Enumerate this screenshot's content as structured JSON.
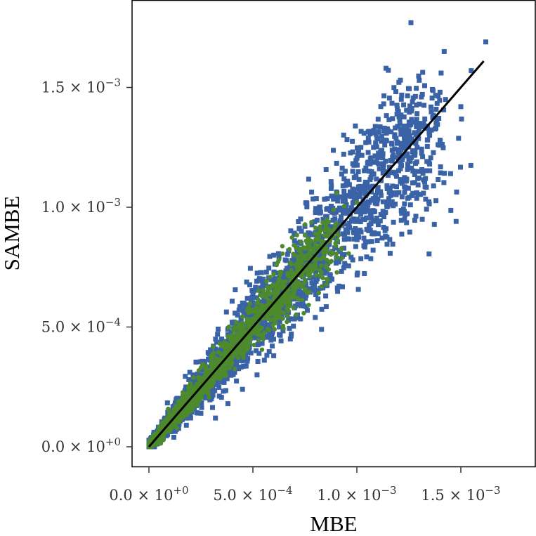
{
  "chart_data": {
    "type": "scatter",
    "xlabel": "MBE",
    "ylabel": "SAMBE",
    "xlim": [
      -8e-05,
      0.00183
    ],
    "ylim": [
      -8e-05,
      0.00187
    ],
    "x_ticks": [
      {
        "value": 0.0,
        "mantissa": "0.0",
        "exponent": "+0"
      },
      {
        "value": 0.0005,
        "mantissa": "5.0",
        "exponent": "−4"
      },
      {
        "value": 0.001,
        "mantissa": "1.0",
        "exponent": "−3"
      },
      {
        "value": 0.0015,
        "mantissa": "1.5",
        "exponent": "−3"
      }
    ],
    "y_ticks": [
      {
        "value": 0.0,
        "mantissa": "0.0",
        "exponent": "+0"
      },
      {
        "value": 0.0005,
        "mantissa": "5.0",
        "exponent": "−4"
      },
      {
        "value": 0.001,
        "mantissa": "1.0",
        "exponent": "−3"
      },
      {
        "value": 0.0015,
        "mantissa": "1.5",
        "exponent": "−3"
      }
    ],
    "grid": false,
    "series": [
      {
        "marker": "square",
        "color": "#3a62a6",
        "points": [
          [
            0.00126,
            0.00177
          ],
          [
            0.00162,
            0.00169
          ],
          [
            0.00142,
            0.00165
          ],
          [
            0.00155,
            0.00157
          ],
          [
            0.0013,
            0.00153
          ],
          [
            0.0014,
            0.00148
          ],
          [
            0.00131,
            0.00146
          ],
          [
            0.0015,
            0.00142
          ],
          [
            0.0012,
            0.0014
          ],
          [
            0.0013,
            0.00135
          ],
          [
            0.00138,
            0.00133
          ],
          [
            0.00115,
            0.00132
          ],
          [
            0.00125,
            0.00132
          ],
          [
            0.00135,
            0.0013
          ],
          [
            0.0014,
            0.00128
          ],
          [
            0.00108,
            0.00125
          ],
          [
            0.0012,
            0.00123
          ],
          [
            0.00125,
            0.0012
          ],
          [
            0.00135,
            0.00118
          ],
          [
            0.00128,
            0.00115
          ],
          [
            0.00098,
            0.00115
          ],
          [
            0.00133,
            0.00112
          ],
          [
            0.00095,
            0.0011
          ],
          [
            0.00105,
            0.0011
          ],
          [
            0.00118,
            0.00106
          ],
          [
            0.00105,
            0.001
          ],
          [
            0.00082,
            0.001
          ],
          [
            0.0009,
            0.00098
          ],
          [
            0.00113,
            0.00096
          ],
          [
            0.00075,
            0.00092
          ],
          [
            0.00095,
            0.0009
          ],
          [
            0.00085,
            0.00089
          ],
          [
            0.001,
            0.00088
          ],
          [
            0.0007,
            0.00086
          ],
          [
            0.00078,
            0.00084
          ],
          [
            0.00092,
            0.00082
          ],
          [
            0.0006,
            0.0008
          ],
          [
            0.00075,
            0.0008
          ],
          [
            0.00098,
            0.00078
          ],
          [
            0.00068,
            0.00076
          ],
          [
            0.00082,
            0.00074
          ],
          [
            0.00088,
            0.0007
          ],
          [
            0.00055,
            0.0007
          ],
          [
            0.00065,
            0.00068
          ],
          [
            0.00077,
            0.00066
          ],
          [
            0.0005,
            0.00064
          ],
          [
            0.00085,
            0.00063
          ],
          [
            0.0006,
            0.00062
          ],
          [
            0.0007,
            0.00058
          ],
          [
            0.00045,
            0.0006
          ],
          [
            0.0008,
            0.00054
          ],
          [
            0.00062,
            0.00052
          ],
          [
            0.0004,
            0.00052
          ],
          [
            0.00083,
            0.00049
          ],
          [
            0.00055,
            0.00047
          ],
          [
            0.00068,
            0.00045
          ],
          [
            0.00035,
            0.00045
          ],
          [
            0.00048,
            0.0004
          ],
          [
            0.0006,
            0.00038
          ],
          [
            0.0003,
            0.00038
          ],
          [
            0.0004,
            0.00033
          ],
          [
            0.00052,
            0.0003
          ],
          [
            0.00025,
            0.00032
          ],
          [
            0.00035,
            0.00027
          ],
          [
            0.00045,
            0.00024
          ],
          [
            0.0002,
            0.00025
          ],
          [
            0.0003,
            0.0002
          ],
          [
            0.00038,
            0.00018
          ],
          [
            0.00015,
            0.00018
          ],
          [
            0.00025,
            0.00014
          ],
          [
            0.00032,
            0.00012
          ],
          [
            0.0001,
            0.00012
          ],
          [
            0.00018,
            9e-05
          ],
          [
            6e-05,
            6e-05
          ],
          [
            0.00012,
            4e-05
          ],
          [
            3e-05,
            3e-05
          ]
        ]
      },
      {
        "marker": "circle",
        "color": "#4d8a2c",
        "points": [
          [
            0.001,
            0.00102
          ],
          [
            0.00085,
            0.00093
          ],
          [
            0.00078,
            0.00086
          ],
          [
            0.0007,
            0.0008
          ],
          [
            0.00063,
            0.00073
          ],
          [
            0.00058,
            0.00066
          ],
          [
            0.00052,
            0.0006
          ],
          [
            0.00048,
            0.00056
          ],
          [
            0.00042,
            0.00052
          ],
          [
            0.00038,
            0.00046
          ],
          [
            0.00035,
            0.00042
          ],
          [
            0.0003,
            0.00038
          ],
          [
            0.00028,
            0.00032
          ],
          [
            0.00024,
            0.00028
          ],
          [
            0.0002,
            0.00024
          ],
          [
            0.00016,
            0.0002
          ],
          [
            0.00013,
            0.00016
          ],
          [
            0.0001,
            0.00012
          ],
          [
            7e-05,
            8e-05
          ],
          [
            4e-05,
            5e-05
          ],
          [
            0.0006,
            0.00072
          ],
          [
            0.00072,
            0.00082
          ],
          [
            0.00055,
            0.00045
          ],
          [
            0.0004,
            0.00035
          ],
          [
            0.00025,
            0.00022
          ],
          [
            0.00015,
            0.00012
          ],
          [
            0.00082,
            0.00089
          ]
        ]
      }
    ],
    "reference_line": {
      "from": [
        0.0,
        0.0
      ],
      "to": [
        0.00161,
        0.00161
      ],
      "color": "#000000"
    }
  }
}
